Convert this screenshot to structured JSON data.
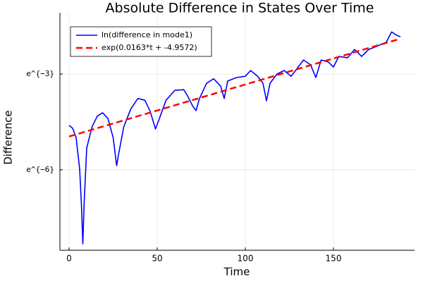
{
  "chart_data": {
    "type": "line",
    "title": "Absolute Difference in States Over Time",
    "xlabel": "Time",
    "ylabel": "Difference",
    "xlim": [
      -5.2,
      196
    ],
    "xticks": [
      0,
      50,
      100,
      150
    ],
    "ylim": [
      0.000199,
      0.34
    ],
    "yscale": "log",
    "yticks": [
      {
        "value": 0.0024788,
        "label": "e^{−6}"
      },
      {
        "value": 0.049787,
        "label": "e^{−3}"
      }
    ],
    "grid": true,
    "legend": "upper left",
    "series": [
      {
        "name": "ln(difference in mode1)",
        "color": "#0000ff",
        "style": "solid",
        "x": [
          0,
          2,
          4,
          6,
          7,
          7.8,
          8.5,
          10,
          13,
          16,
          19,
          22,
          25,
          27,
          28,
          31,
          35,
          39,
          43,
          46,
          49,
          51,
          55,
          60,
          65,
          67,
          70,
          72,
          74,
          78,
          82,
          86,
          88,
          90,
          95,
          100,
          103,
          107,
          110,
          112,
          114,
          118,
          122,
          126,
          130,
          133,
          137,
          140,
          143,
          147,
          150,
          153,
          158,
          162,
          166,
          170,
          175,
          180,
          183,
          186,
          188
        ],
        "values": [
          0.00995,
          0.0091,
          0.00681,
          0.00253,
          0.000842,
          0.000244,
          0.000842,
          0.00489,
          0.00947,
          0.0133,
          0.0148,
          0.0124,
          0.00681,
          0.00282,
          0.00393,
          0.00947,
          0.0166,
          0.0231,
          0.0219,
          0.0155,
          0.00891,
          0.0119,
          0.0219,
          0.0299,
          0.0305,
          0.0257,
          0.0185,
          0.0158,
          0.0231,
          0.0373,
          0.0429,
          0.034,
          0.0231,
          0.04,
          0.0446,
          0.0464,
          0.0556,
          0.0464,
          0.0373,
          0.0215,
          0.0373,
          0.0498,
          0.0556,
          0.0464,
          0.062,
          0.0773,
          0.0665,
          0.0446,
          0.0773,
          0.0728,
          0.062,
          0.0863,
          0.0829,
          0.1075,
          0.0863,
          0.1075,
          0.12,
          0.1353,
          0.186,
          0.167,
          0.16
        ]
      },
      {
        "name": "exp(0.0163*t + -4.9572)",
        "color": "#ff0000",
        "style": "dashed",
        "x": [
          0,
          188
        ],
        "values": [
          0.00703,
          0.1506
        ]
      }
    ]
  }
}
